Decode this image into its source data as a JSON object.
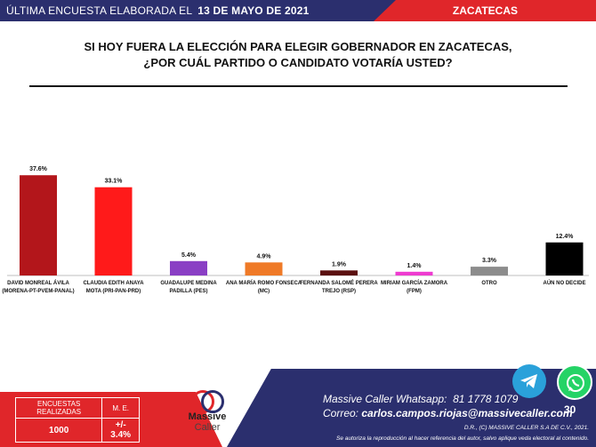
{
  "header": {
    "label": "ÚLTIMA ENCUESTA ELABORADA EL",
    "date": "13 DE MAYO DE 2021",
    "state": "ZACATECAS"
  },
  "question": {
    "line1": "SI HOY FUERA LA ELECCIÓN PARA ELEGIR GOBERNADOR EN ZACATECAS,",
    "line2": "¿POR CUÁL PARTIDO O CANDIDATO VOTARÍA USTED?"
  },
  "chart_data": {
    "type": "bar",
    "categories": [
      [
        "DAVID MONREAL ÁVILA",
        "(MORENA-PT-PVEM-PANAL)"
      ],
      [
        "CLAUDIA EDITH ANAYA",
        "MOTA (PRI-PAN-PRD)"
      ],
      [
        "GUADALUPE MEDINA",
        "PADILLA  (PES)"
      ],
      [
        "ANA MARÍA ROMO FONSECA",
        "(MC)"
      ],
      [
        "FERNANDA SALOMÉ PERERA",
        "TREJO (RSP)"
      ],
      [
        "MIRIAM GARCÍA ZAMORA",
        "(FPM)"
      ],
      [
        "OTRO"
      ],
      [
        "AÚN NO DECIDE"
      ]
    ],
    "values": [
      37.6,
      33.1,
      5.4,
      4.9,
      1.9,
      1.4,
      3.3,
      12.4
    ],
    "value_labels": [
      "37.6%",
      "33.1%",
      "5.4%",
      "4.9%",
      "1.9%",
      "1.4%",
      "3.3%",
      "12.4%"
    ],
    "colors": [
      "#b3161b",
      "#ff1a1a",
      "#8a3fc4",
      "#ef7a27",
      "#5b1010",
      "#ee3cd0",
      "#8c8c8c",
      "#000000"
    ],
    "ylim": [
      0,
      40
    ],
    "grid": false,
    "legend": "none"
  },
  "stats": {
    "h1": "ENCUESTAS REALIZADAS",
    "h2": "M. E.",
    "v1": "1000",
    "v2": "+/- 3.4%"
  },
  "logo": {
    "name1": "Massive",
    "name2": "Caller"
  },
  "contact": {
    "whatsapp_label": "Massive Caller Whatsapp:",
    "whatsapp_number": "81 1778 1079",
    "email_label": "Correo:",
    "email": "carlos.campos.riojas@massivecaller.com"
  },
  "legal": {
    "rights": "D.R., (C) MASSIVE CALLER S.A DE C.V., 2021.",
    "reproduction": "Se autoriza la reproducción al hacer referencia del autor, salvo aplique veda electoral al contenido."
  },
  "page_number": "30",
  "icons": {
    "telegram": "telegram-icon",
    "whatsapp": "whatsapp-icon"
  }
}
